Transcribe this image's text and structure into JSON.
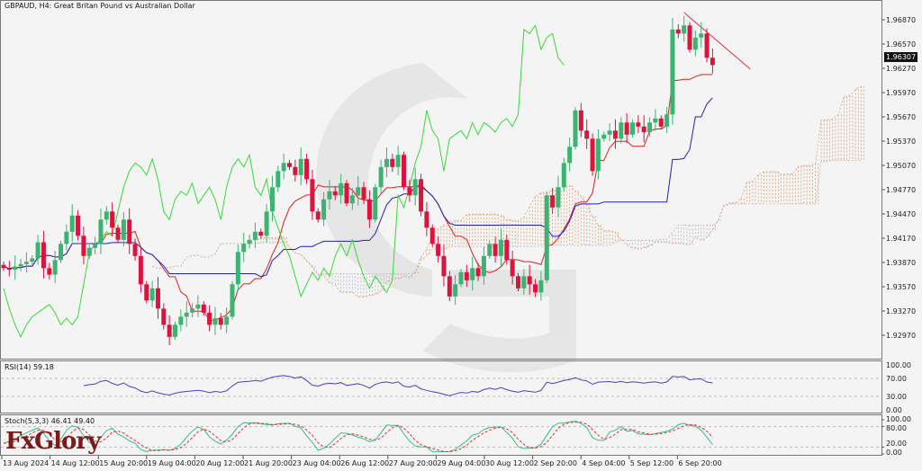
{
  "header": {
    "title": "GBPAUD, H4:  Great Britan Pound vs Australian Dollar"
  },
  "logo": {
    "text": "FxGlory"
  },
  "colors": {
    "bull": "#3cb371",
    "bear": "#dc143c",
    "tenkan": "#e02020",
    "kijun": "#2020c0",
    "chikou": "#33dd33",
    "cloud_up": "#e0a070",
    "cloud_down": "#b8b8c4",
    "rsi": "#4b3fc4",
    "stoch_main": "#2fbf8f",
    "stoch_signal": "#e03030",
    "trendline": "#e03040"
  },
  "chart_data": {
    "type": "candlestick",
    "symbol": "GBPAUD",
    "timeframe": "H4",
    "indicators": [
      "Ichimoku",
      "RSI(14)",
      "Stoch(5,3,3)"
    ],
    "closes": [
      1.938,
      1.9378,
      1.9382,
      1.9385,
      1.9388,
      1.9392,
      1.9412,
      1.938,
      1.9372,
      1.939,
      1.941,
      1.9425,
      1.9445,
      1.942,
      1.9395,
      1.9405,
      1.941,
      1.944,
      1.945,
      1.943,
      1.9415,
      1.944,
      1.941,
      1.9395,
      1.936,
      1.934,
      1.9355,
      1.933,
      1.931,
      1.9295,
      1.931,
      1.932,
      1.9325,
      1.933,
      1.9335,
      1.9325,
      1.931,
      1.9318,
      1.931,
      1.932,
      1.936,
      1.94,
      1.941,
      1.9415,
      1.9425,
      1.942,
      1.945,
      1.948,
      1.95,
      1.951,
      1.9505,
      1.9495,
      1.9515,
      1.949,
      1.945,
      1.944,
      1.9465,
      1.9475,
      1.947,
      1.9485,
      1.946,
      1.947,
      1.948,
      1.9465,
      1.944,
      1.948,
      1.9505,
      1.9515,
      1.9505,
      1.952,
      1.948,
      1.947,
      1.949,
      1.945,
      1.943,
      1.941,
      1.9395,
      1.937,
      1.9345,
      1.936,
      1.9375,
      1.9365,
      1.938,
      1.937,
      1.9395,
      1.941,
      1.9395,
      1.9415,
      1.939,
      1.937,
      1.9355,
      1.937,
      1.936,
      1.935,
      1.9365,
      1.947,
      1.9455,
      1.948,
      1.951,
      1.953,
      1.9575,
      1.955,
      1.954,
      1.95,
      1.954,
      1.9545,
      1.955,
      1.954,
      1.956,
      1.9545,
      1.956,
      1.9555,
      1.9548,
      1.956,
      1.9565,
      1.9555,
      1.957,
      1.9675,
      1.967,
      1.968,
      1.965,
      1.9665,
      1.967,
      1.964,
      1.9631
    ],
    "current_price": "1.96307",
    "price_ticks": [
      "1.96870",
      "1.96570",
      "1.96270",
      "1.95970",
      "1.95670",
      "1.95370",
      "1.95070",
      "1.94770",
      "1.94470",
      "1.94170",
      "1.93870",
      "1.93570",
      "1.93270",
      "1.92970"
    ],
    "time_ticks": [
      "13 Aug 2024",
      "14 Aug 12:00",
      "15 Aug 20:00",
      "19 Aug 04:00",
      "20 Aug 12:00",
      "21 Aug 20:00",
      "23 Aug 04:00",
      "26 Aug 12:00",
      "27 Aug 20:00",
      "29 Aug 04:00",
      "30 Aug 12:00",
      "2 Sep 20:00",
      "4 Sep 04:00",
      "5 Sep 12:00",
      "6 Sep 20:00"
    ],
    "trendline": {
      "from": {
        "bar": 119,
        "price": 1.9696
      },
      "to": {
        "bar": 130.6,
        "price": 1.9626
      }
    },
    "rsi": {
      "label": "RSI(14) 59.18",
      "ticks": [
        "100.00",
        "70.00",
        "30.00",
        "0.00"
      ],
      "levels": [
        70,
        30
      ]
    },
    "stoch": {
      "label": "Stoch(5,3,3) 46.41 49.40",
      "ticks": [
        "100.00",
        "80.00",
        "20.00",
        "0.00"
      ],
      "levels": [
        80,
        20
      ]
    }
  }
}
